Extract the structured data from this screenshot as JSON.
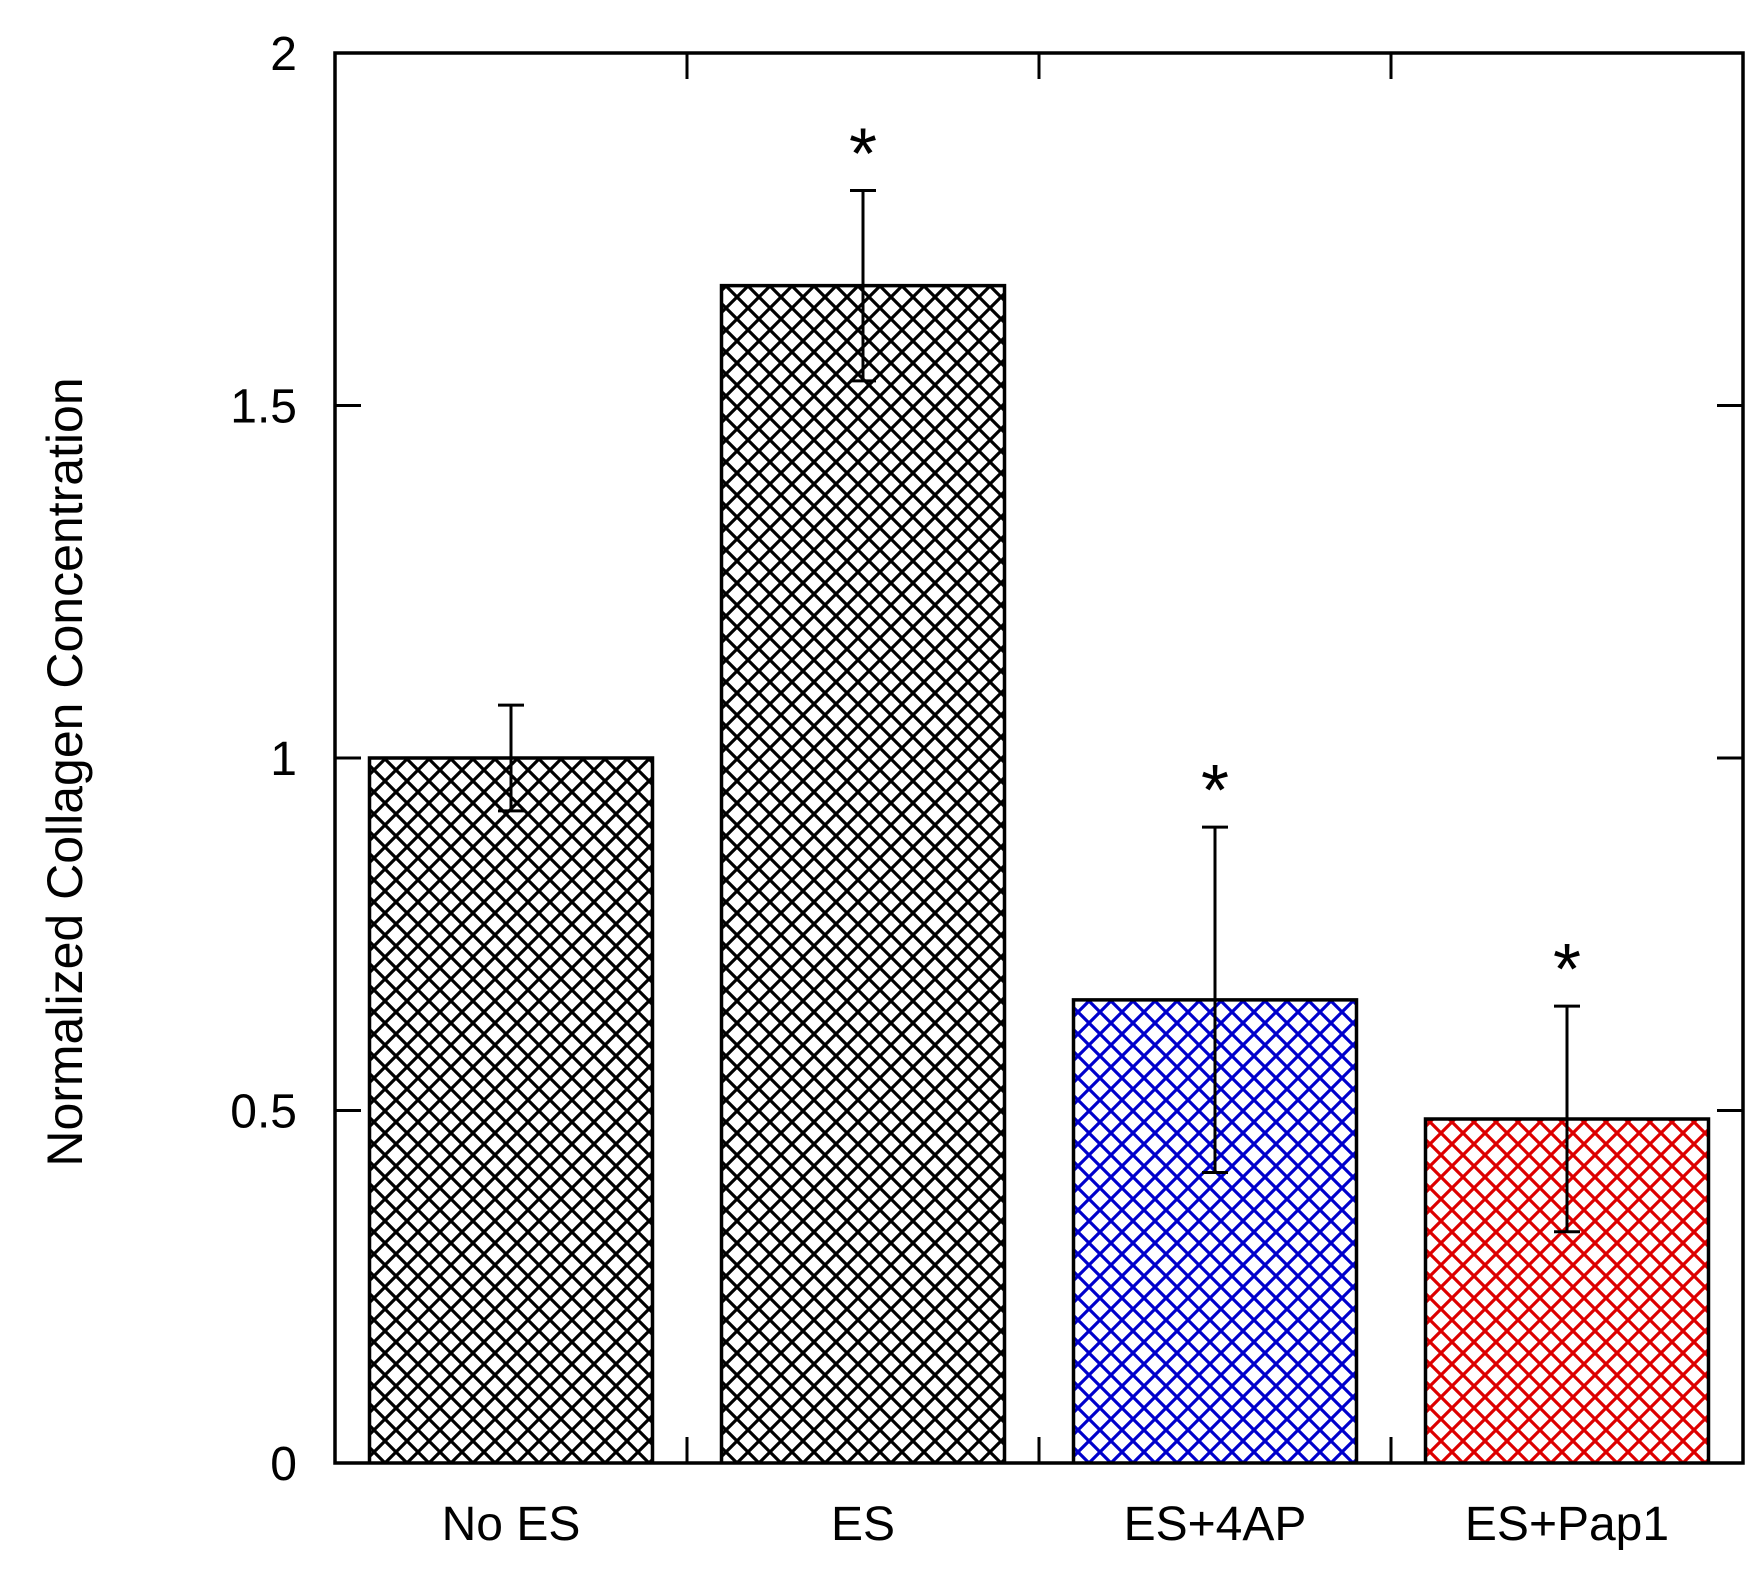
{
  "chart_data": {
    "type": "bar",
    "title": "",
    "xlabel": "",
    "ylabel": "Normalized Collagen Concentration",
    "ylim": [
      0,
      2
    ],
    "yticks": [
      0,
      0.5,
      1,
      1.5,
      2
    ],
    "ytick_labels": [
      "0",
      "0.5",
      "1",
      "1.5",
      "2"
    ],
    "grid": false,
    "categories": [
      "No ES",
      "ES",
      "ES+4AP",
      "ES+Pap1"
    ],
    "values": [
      1.0,
      1.67,
      0.657,
      0.488
    ],
    "errors": [
      0.075,
      0.135,
      0.245,
      0.16
    ],
    "significance": [
      "",
      "*",
      "*",
      "*"
    ],
    "bar_colors": [
      "#000000",
      "#000000",
      "#0000cc",
      "#dd0000"
    ],
    "fill_pattern": "crosshatch"
  }
}
